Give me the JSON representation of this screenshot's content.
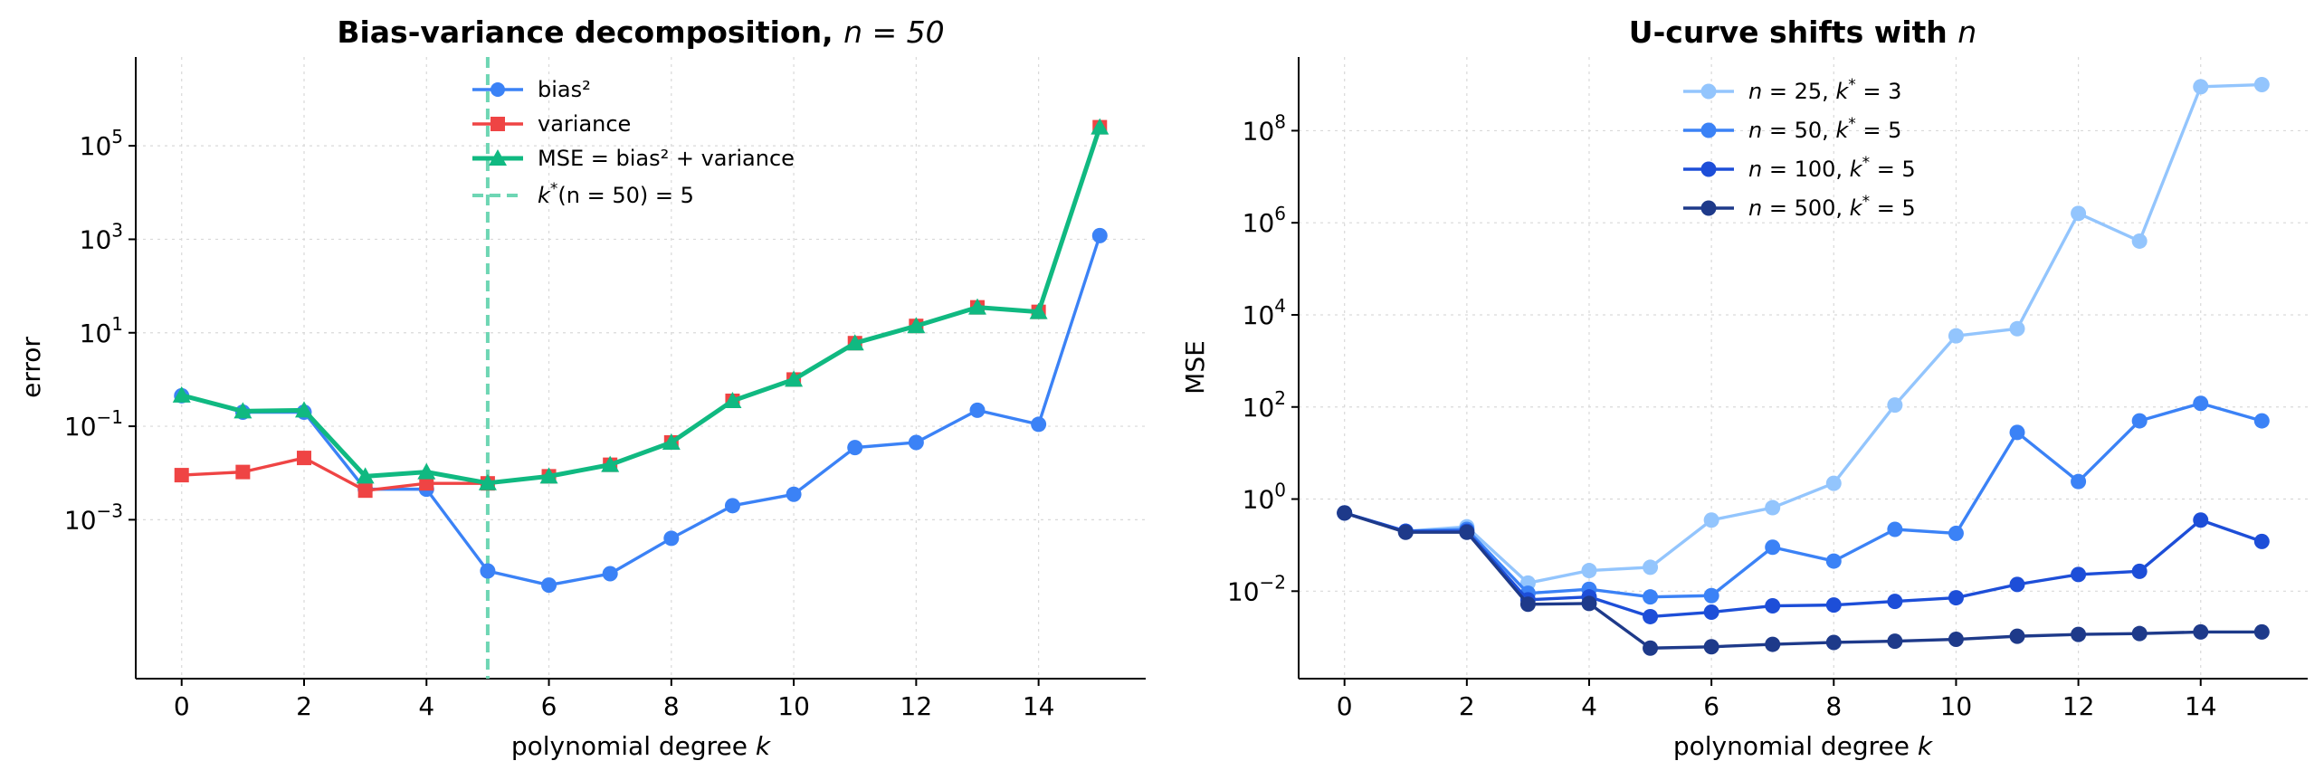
{
  "chart_data": [
    {
      "type": "line",
      "title": "Bias-variance decomposition, n = 50",
      "title_main": "Bias-variance decomposition,",
      "title_var": "n = 50",
      "xlabel": "polynomial degree k",
      "xlabel_main": "polynomial degree",
      "xlabel_var": "k",
      "ylabel": "error",
      "yscale": "log",
      "xlim": [
        -0.75,
        15.75
      ],
      "ylim_log10": [
        -6.4,
        6.9
      ],
      "x_ticks": [
        "0",
        "2",
        "4",
        "6",
        "8",
        "10",
        "12",
        "14"
      ],
      "y_ticks": [
        {
          "exp": -3,
          "label": "10^-3"
        },
        {
          "exp": -1,
          "label": "10^-1"
        },
        {
          "exp": 1,
          "label": "10^1"
        },
        {
          "exp": 3,
          "label": "10^3"
        },
        {
          "exp": 5,
          "label": "10^5"
        }
      ],
      "grid": true,
      "legend_position": "top-center",
      "x": [
        0,
        1,
        2,
        3,
        4,
        5,
        6,
        7,
        8,
        9,
        10,
        11,
        12,
        13,
        14,
        15
      ],
      "series": [
        {
          "name": "bias^2",
          "legend_label": "bias²",
          "color": "#3b82f6",
          "marker": "circle",
          "width": 3.4,
          "values": [
            0.45,
            0.2,
            0.2,
            0.0045,
            0.0045,
            8e-05,
            4e-05,
            7e-05,
            0.0004,
            0.002,
            0.0035,
            0.035,
            0.045,
            0.22,
            0.11,
            1200
          ]
        },
        {
          "name": "variance",
          "legend_label": "variance",
          "color": "#ef4444",
          "marker": "square",
          "width": 3.4,
          "values": [
            0.009,
            0.0105,
            0.021,
            0.0042,
            0.006,
            0.006,
            0.0085,
            0.015,
            0.045,
            0.35,
            1.0,
            6.0,
            14.0,
            35.0,
            28.0,
            250000
          ]
        },
        {
          "name": "MSE = bias^2 + variance",
          "legend_label": "MSE = bias² + variance",
          "color": "#10b981",
          "marker": "triangle",
          "width": 5,
          "values": [
            0.46,
            0.21,
            0.22,
            0.0085,
            0.0105,
            0.0061,
            0.0085,
            0.015,
            0.045,
            0.35,
            1.0,
            6.0,
            14.0,
            35.0,
            28.0,
            250000
          ]
        }
      ],
      "vline": {
        "x": 5,
        "label": "k*(n=50) = 5",
        "label_main": "k",
        "label_sup": "*",
        "label_rest": "(n = 50) = 5",
        "color": "#6ed6b4"
      }
    },
    {
      "type": "line",
      "title": "U-curve shifts with n",
      "title_main": "U-curve shifts with",
      "title_var": "n",
      "xlabel": "polynomial degree k",
      "xlabel_main": "polynomial degree",
      "xlabel_var": "k",
      "ylabel": "MSE",
      "yscale": "log",
      "xlim": [
        -0.75,
        15.75
      ],
      "ylim_log10": [
        -3.9,
        9.6
      ],
      "x_ticks": [
        "0",
        "2",
        "4",
        "6",
        "8",
        "10",
        "12",
        "14"
      ],
      "y_ticks": [
        {
          "exp": -2,
          "label": "10^-2"
        },
        {
          "exp": 0,
          "label": "10^0"
        },
        {
          "exp": 2,
          "label": "10^2"
        },
        {
          "exp": 4,
          "label": "10^4"
        },
        {
          "exp": 6,
          "label": "10^6"
        },
        {
          "exp": 8,
          "label": "10^8"
        }
      ],
      "grid": true,
      "legend_position": "top-center",
      "x": [
        0,
        1,
        2,
        3,
        4,
        5,
        6,
        7,
        8,
        9,
        10,
        11,
        12,
        13,
        14,
        15
      ],
      "series": [
        {
          "name": "n = 25, k* = 3",
          "n": "25",
          "k": "3",
          "color": "#93c5fd",
          "values": [
            0.5,
            0.2,
            0.25,
            0.015,
            0.028,
            0.033,
            0.35,
            0.65,
            2.2,
            110,
            3500,
            5000,
            1600000,
            400000,
            900000000,
            1000000000
          ]
        },
        {
          "name": "n = 50, k* = 5",
          "n": "50",
          "k": "5",
          "color": "#3b82f6",
          "values": [
            0.5,
            0.2,
            0.22,
            0.009,
            0.011,
            0.0075,
            0.008,
            0.09,
            0.045,
            0.22,
            0.18,
            28,
            2.4,
            50,
            120,
            50
          ]
        },
        {
          "name": "n = 100, k* = 5",
          "n": "100",
          "k": "5",
          "color": "#1d4ed8",
          "values": [
            0.5,
            0.2,
            0.2,
            0.0065,
            0.0075,
            0.0028,
            0.0035,
            0.0048,
            0.005,
            0.006,
            0.0072,
            0.014,
            0.023,
            0.027,
            0.35,
            0.12
          ]
        },
        {
          "name": "n = 500, k* = 5",
          "n": "500",
          "k": "5",
          "color": "#1e3a8a",
          "values": [
            0.5,
            0.19,
            0.19,
            0.0052,
            0.0054,
            0.00058,
            0.00062,
            0.0007,
            0.00077,
            0.00082,
            0.0009,
            0.00105,
            0.00115,
            0.0012,
            0.0013,
            0.0013
          ]
        }
      ]
    }
  ]
}
